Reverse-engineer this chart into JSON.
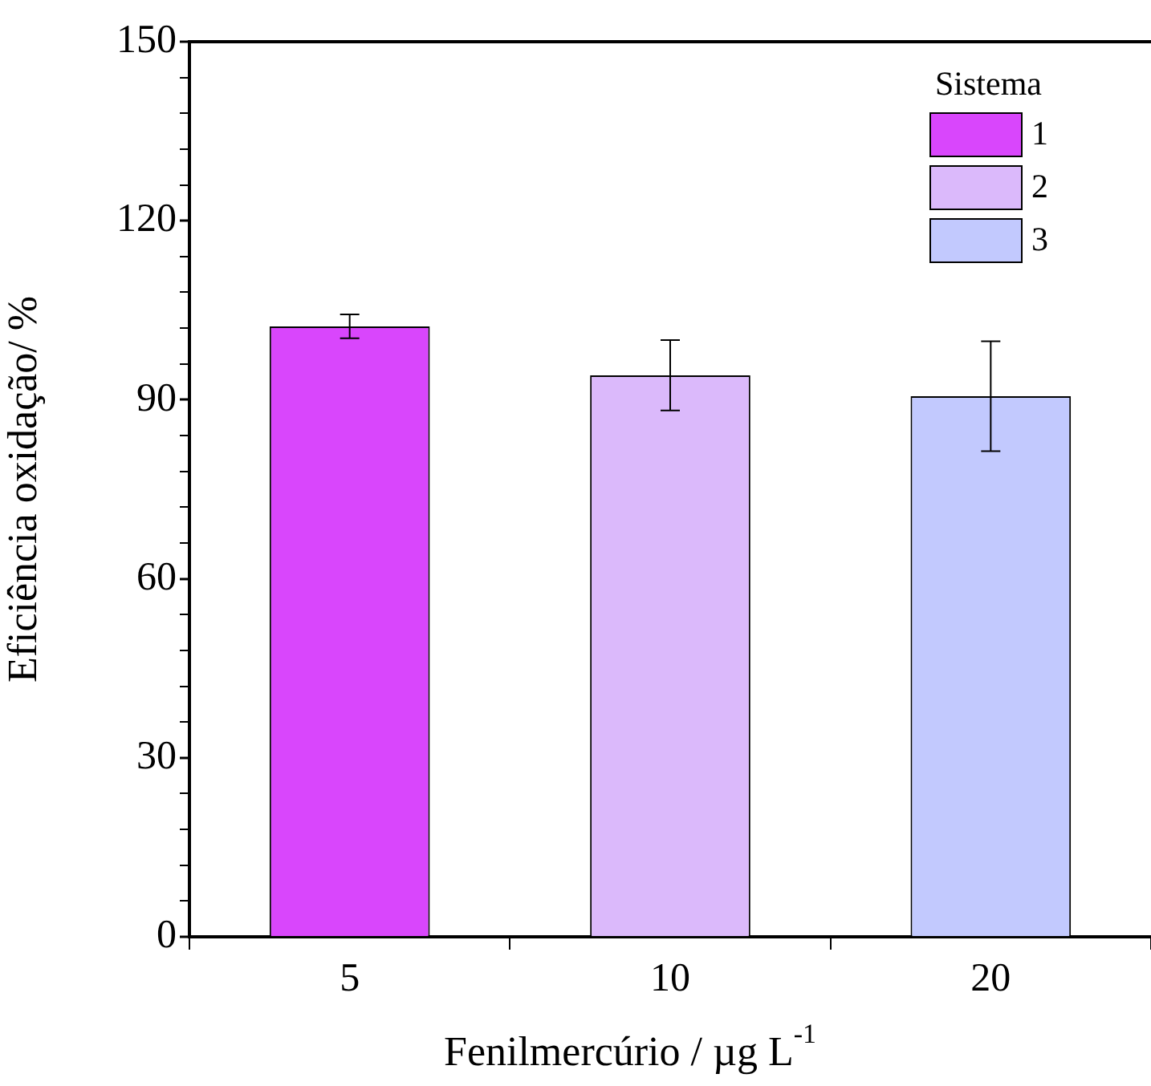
{
  "chart_data": {
    "type": "bar",
    "xlabel": "Fenilmercúrio / µg L$^{-1}$",
    "ylabel": "Eficiência oxidação/ %",
    "legend_title": "Sistema",
    "legend": "top right",
    "grid": false,
    "categories": [
      "5",
      "10",
      "20"
    ],
    "series": [
      {
        "name": "1",
        "color": "#d946fc",
        "values": [
          102.3,
          null,
          null
        ],
        "errors": [
          2.0,
          null,
          null
        ]
      },
      {
        "name": "2",
        "color": "#dbb9fb",
        "values": [
          null,
          94.1,
          null
        ],
        "errors": [
          null,
          5.9,
          null
        ]
      },
      {
        "name": "3",
        "color": "#c2c9fe",
        "values": [
          null,
          null,
          90.6
        ],
        "errors": [
          null,
          null,
          9.2
        ]
      }
    ],
    "ylim": [
      0,
      150
    ],
    "yticks": [
      0,
      {
        "value": 6,
        "label": null
      },
      {
        "value": 12,
        "label": null
      },
      {
        "value": 18,
        "label": null
      },
      {
        "value": 24,
        "label": null
      },
      30,
      {
        "value": 36,
        "label": null
      },
      {
        "value": 42,
        "label": null
      },
      {
        "value": 48,
        "label": null
      },
      {
        "value": 54,
        "label": null
      },
      60,
      {
        "value": 66,
        "label": null
      },
      {
        "value": 72,
        "label": null
      },
      {
        "value": 78,
        "label": null
      },
      {
        "value": 84,
        "label": null
      },
      90,
      {
        "value": 96,
        "label": null
      },
      {
        "value": 102,
        "label": null
      },
      {
        "value": 108,
        "label": null
      },
      {
        "value": 114,
        "label": null
      },
      120,
      {
        "value": 126,
        "label": null
      },
      {
        "value": 132,
        "label": null
      },
      {
        "value": 138,
        "label": null
      },
      {
        "value": 144,
        "label": null
      },
      150
    ]
  }
}
